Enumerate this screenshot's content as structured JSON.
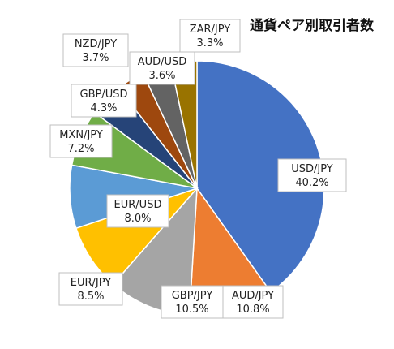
{
  "chart_data": {
    "type": "pie",
    "title": "通貨ペア別取引者数",
    "categories": [
      "USD/JPY",
      "AUD/JPY",
      "GBP/JPY",
      "EUR/JPY",
      "EUR/USD",
      "MXN/JPY",
      "GBP/USD",
      "AUD/USD",
      "NZD/JPY",
      "ZAR/JPY"
    ],
    "values": [
      40.2,
      10.8,
      10.5,
      8.5,
      8.0,
      7.2,
      4.3,
      3.6,
      3.7,
      3.3
    ],
    "value_labels": [
      "40.2%",
      "10.8%",
      "10.5%",
      "8.5%",
      "8.0%",
      "7.2%",
      "4.3%",
      "3.6%",
      "3.7%",
      "3.3%"
    ],
    "colors": [
      "#4472c4",
      "#ed7d31",
      "#a5a5a5",
      "#ffc000",
      "#5b9bd5",
      "#70ad47",
      "#264478",
      "#9e480e",
      "#636363",
      "#997300"
    ],
    "legend": "none",
    "start": "12 o'clock",
    "direction": "clockwise"
  }
}
